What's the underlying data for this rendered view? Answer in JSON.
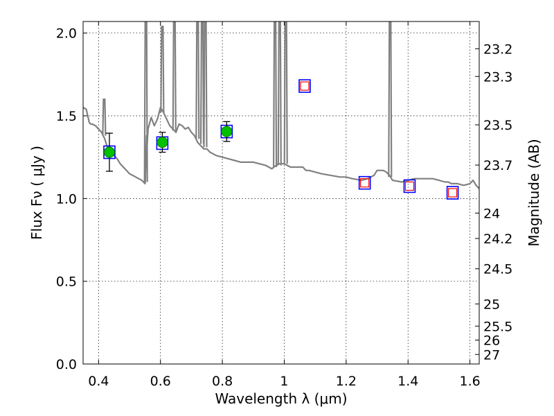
{
  "chart_data": {
    "type": "scatter",
    "title": "",
    "xlabel": "Wavelength  λ (μm)",
    "ylabel": "Flux  Fν  ( μJy )",
    "y2label": "Magnitude (AB)",
    "xlim": [
      0.35,
      1.63
    ],
    "ylim": [
      0.0,
      2.07
    ],
    "grid": true,
    "xticks": [
      {
        "v": 0.4,
        "label": "0.4"
      },
      {
        "v": 0.6,
        "label": "0.6"
      },
      {
        "v": 0.8,
        "label": "0.8"
      },
      {
        "v": 1.0,
        "label": "1"
      },
      {
        "v": 1.2,
        "label": "1.2"
      },
      {
        "v": 1.4,
        "label": "1.4"
      },
      {
        "v": 1.6,
        "label": "1.6"
      }
    ],
    "yticks": [
      {
        "v": 0.0,
        "label": "0.0"
      },
      {
        "v": 0.5,
        "label": "0.5"
      },
      {
        "v": 1.0,
        "label": "1.0"
      },
      {
        "v": 1.5,
        "label": "1.5"
      },
      {
        "v": 2.0,
        "label": "2.0"
      }
    ],
    "mag_ticks": [
      {
        "mag": 23.2,
        "label": "23.2"
      },
      {
        "mag": 23.3,
        "label": "23.3"
      },
      {
        "mag": 23.5,
        "label": "23.5"
      },
      {
        "mag": 23.7,
        "label": "23.7"
      },
      {
        "mag": 24.0,
        "label": "24"
      },
      {
        "mag": 24.2,
        "label": "24.2"
      },
      {
        "mag": 24.5,
        "label": "24.5"
      },
      {
        "mag": 25.0,
        "label": "25"
      },
      {
        "mag": 25.5,
        "label": "25.5"
      },
      {
        "mag": 26.0,
        "label": "26"
      },
      {
        "mag": 27.0,
        "label": "27"
      }
    ],
    "series": [
      {
        "kind": "model_spectrum",
        "color": "#808080",
        "x": [
          0.35,
          0.36,
          0.365,
          0.37,
          0.375,
          0.38,
          0.39,
          0.4,
          0.41,
          0.415,
          0.42,
          0.43,
          0.44,
          0.45,
          0.46,
          0.47,
          0.48,
          0.49,
          0.5,
          0.51,
          0.52,
          0.53,
          0.54,
          0.55,
          0.551,
          0.555,
          0.556,
          0.56,
          0.57,
          0.58,
          0.59,
          0.6,
          0.61,
          0.62,
          0.63,
          0.64,
          0.65,
          0.66,
          0.67,
          0.68,
          0.69,
          0.7,
          0.71,
          0.72,
          0.73,
          0.74,
          0.75,
          0.76,
          0.78,
          0.8,
          0.82,
          0.84,
          0.86,
          0.88,
          0.9,
          0.92,
          0.94,
          0.96,
          0.98,
          1.0,
          1.02,
          1.04,
          1.06,
          1.07,
          1.08,
          1.1,
          1.12,
          1.15,
          1.18,
          1.2,
          1.22,
          1.25,
          1.27,
          1.29,
          1.3,
          1.32,
          1.33,
          1.34,
          1.35,
          1.38,
          1.4,
          1.42,
          1.45,
          1.48,
          1.5,
          1.52,
          1.53,
          1.54,
          1.56,
          1.58,
          1.6,
          1.61,
          1.62,
          1.63
        ],
        "y": [
          1.55,
          1.54,
          1.5,
          1.46,
          1.45,
          1.45,
          1.44,
          1.42,
          1.4,
          1.38,
          1.36,
          1.3,
          1.28,
          1.26,
          1.24,
          1.21,
          1.19,
          1.17,
          1.15,
          1.14,
          1.13,
          1.12,
          1.11,
          1.09,
          1.1,
          1.38,
          1.3,
          1.42,
          1.49,
          1.44,
          1.48,
          1.55,
          1.52,
          1.48,
          1.44,
          1.42,
          1.4,
          1.45,
          1.44,
          1.42,
          1.43,
          1.4,
          1.38,
          1.34,
          1.32,
          1.3,
          1.3,
          1.28,
          1.26,
          1.25,
          1.24,
          1.23,
          1.22,
          1.22,
          1.22,
          1.21,
          1.2,
          1.18,
          1.21,
          1.21,
          1.19,
          1.19,
          1.19,
          1.17,
          1.17,
          1.16,
          1.15,
          1.14,
          1.13,
          1.13,
          1.12,
          1.11,
          1.12,
          1.14,
          1.17,
          1.17,
          1.16,
          1.14,
          1.11,
          1.1,
          1.11,
          1.12,
          1.12,
          1.12,
          1.11,
          1.1,
          1.1,
          1.09,
          1.09,
          1.08,
          1.09,
          1.11,
          1.08,
          1.06
        ],
        "spikes": [
          {
            "x": 0.418,
            "top": 1.6,
            "base": 1.38
          },
          {
            "x": 0.553,
            "top": 2.1,
            "base": 1.1
          },
          {
            "x": 0.606,
            "top": 2.04,
            "base": 1.52
          },
          {
            "x": 0.645,
            "top": 2.1,
            "base": 1.41
          },
          {
            "x": 0.72,
            "top": 2.1,
            "base": 1.36
          },
          {
            "x": 0.735,
            "top": 2.1,
            "base": 1.33
          },
          {
            "x": 0.745,
            "top": 2.1,
            "base": 1.31
          },
          {
            "x": 0.97,
            "top": 2.1,
            "base": 1.19
          },
          {
            "x": 0.985,
            "top": 2.1,
            "base": 1.2
          },
          {
            "x": 1.005,
            "top": 2.1,
            "base": 1.21
          },
          {
            "x": 1.342,
            "top": 2.1,
            "base": 1.13
          }
        ]
      },
      {
        "kind": "model_photometry",
        "marker": "square",
        "color": "#0000ff",
        "x": [
          0.435,
          0.606,
          0.814,
          1.066,
          1.26,
          1.405,
          1.544
        ],
        "y": [
          1.28,
          1.335,
          1.405,
          1.68,
          1.095,
          1.075,
          1.035
        ]
      },
      {
        "kind": "upper_limits",
        "marker": "square-open",
        "color": "#ff0000",
        "x": [
          1.066,
          1.26,
          1.405,
          1.544
        ],
        "y": [
          1.68,
          1.095,
          1.075,
          1.035
        ]
      },
      {
        "kind": "observed",
        "marker": "circle",
        "color": "#00c000",
        "x": [
          0.435,
          0.606,
          0.814
        ],
        "y": [
          1.28,
          1.34,
          1.405
        ],
        "yerr": [
          0.115,
          0.06,
          0.06
        ]
      }
    ]
  }
}
